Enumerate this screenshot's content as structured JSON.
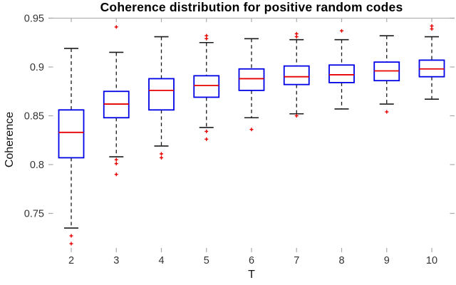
{
  "chart_data": {
    "type": "boxplot",
    "title": "Coherence distribution for positive random codes",
    "xlabel": "T",
    "ylabel": "Coherence",
    "categories": [
      2,
      3,
      4,
      5,
      6,
      7,
      8,
      9,
      10
    ],
    "y_ticks": [
      0.95,
      0.9,
      0.85,
      0.8,
      0.75
    ],
    "y_tick_labels": [
      "0.95",
      "0.9",
      "0.85",
      "0.8",
      "0.75"
    ],
    "ylim": [
      0.712,
      0.95
    ],
    "grid": false,
    "legend": null,
    "boxes": [
      {
        "t": 2,
        "whisker_low": 0.735,
        "q1": 0.807,
        "median": 0.833,
        "q3": 0.856,
        "whisker_high": 0.919,
        "outliers_low": [
          0.727,
          0.719
        ],
        "outliers_high": []
      },
      {
        "t": 3,
        "whisker_low": 0.808,
        "q1": 0.848,
        "median": 0.862,
        "q3": 0.875,
        "whisker_high": 0.915,
        "outliers_low": [
          0.805,
          0.801,
          0.79
        ],
        "outliers_high": [
          0.941
        ]
      },
      {
        "t": 4,
        "whisker_low": 0.819,
        "q1": 0.856,
        "median": 0.876,
        "q3": 0.888,
        "whisker_high": 0.931,
        "outliers_low": [
          0.811,
          0.807
        ],
        "outliers_high": []
      },
      {
        "t": 5,
        "whisker_low": 0.838,
        "q1": 0.869,
        "median": 0.881,
        "q3": 0.891,
        "whisker_high": 0.925,
        "outliers_low": [
          0.834,
          0.826
        ],
        "outliers_high": [
          0.932,
          0.929
        ]
      },
      {
        "t": 6,
        "whisker_low": 0.848,
        "q1": 0.876,
        "median": 0.888,
        "q3": 0.898,
        "whisker_high": 0.929,
        "outliers_low": [
          0.836
        ],
        "outliers_high": []
      },
      {
        "t": 7,
        "whisker_low": 0.852,
        "q1": 0.882,
        "median": 0.89,
        "q3": 0.901,
        "whisker_high": 0.928,
        "outliers_low": [
          0.85
        ],
        "outliers_high": [
          0.934,
          0.931
        ]
      },
      {
        "t": 8,
        "whisker_low": 0.857,
        "q1": 0.884,
        "median": 0.892,
        "q3": 0.902,
        "whisker_high": 0.928,
        "outliers_low": [],
        "outliers_high": [
          0.937
        ]
      },
      {
        "t": 9,
        "whisker_low": 0.862,
        "q1": 0.886,
        "median": 0.896,
        "q3": 0.905,
        "whisker_high": 0.932,
        "outliers_low": [
          0.854
        ],
        "outliers_high": []
      },
      {
        "t": 10,
        "whisker_low": 0.867,
        "q1": 0.89,
        "median": 0.898,
        "q3": 0.907,
        "whisker_high": 0.931,
        "outliers_low": [],
        "outliers_high": [
          0.942,
          0.939
        ]
      }
    ],
    "colors": {
      "box": "#0000e6",
      "median": "#e60000",
      "outlier": "#e60000",
      "whisker": "#1a1a1a",
      "frame": "#b3b3b3",
      "tick": "#aaaaaa",
      "tick_label": "#333333"
    }
  }
}
